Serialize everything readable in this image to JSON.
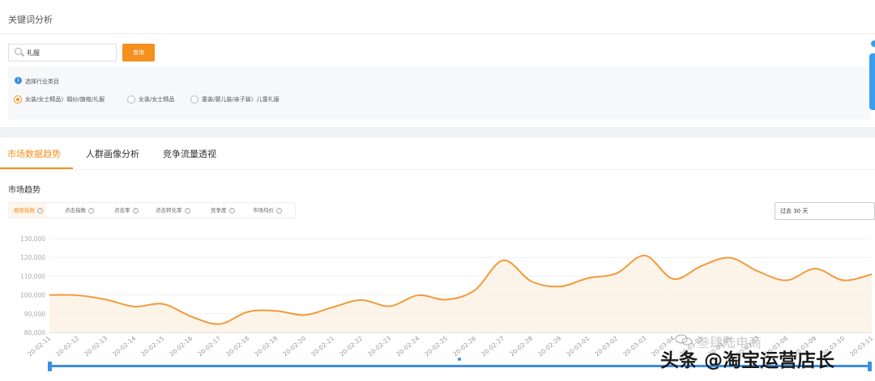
{
  "page": {
    "title": "关键词分析"
  },
  "search": {
    "value": "礼服",
    "button_label": "查询"
  },
  "filter": {
    "title": "选择行业类目",
    "options": [
      "女装/女士精品〉婚纱/旗袍/礼服",
      "女装/女士精品",
      "童装/婴儿装/亲子装〉儿童礼服"
    ],
    "selected_index": 0
  },
  "tabs": [
    "市场数据趋势",
    "人群画像分析",
    "竞争流量透视"
  ],
  "section_title": "市场趋势",
  "metrics": [
    "展现指数",
    "点击指数",
    "点击率",
    "点击转化率",
    "竞争度",
    "市场均价"
  ],
  "range": "过去 30 天",
  "watermark": {
    "brand": "叁肆陆电商",
    "caption": "头条 @淘宝运营店长"
  },
  "colors": {
    "accent": "#f58f1e",
    "info": "#3a8ee6"
  },
  "chart_data": {
    "type": "area",
    "title": "",
    "xlabel": "",
    "ylabel": "",
    "ylim": [
      80000,
      130000
    ],
    "yticks": [
      "80,000",
      "90,000",
      "100,000",
      "110,000",
      "120,000",
      "130,000"
    ],
    "x": [
      "20-02-11",
      "20-02-12",
      "20-02-13",
      "20-02-14",
      "20-02-15",
      "20-02-16",
      "20-02-17",
      "20-02-18",
      "20-02-19",
      "20-02-20",
      "20-02-21",
      "20-02-22",
      "20-02-23",
      "20-02-24",
      "20-02-25",
      "20-02-26",
      "20-02-27",
      "20-02-28",
      "20-02-29",
      "20-03-01",
      "20-03-02",
      "20-03-03",
      "20-03-04",
      "20-03-05",
      "20-03-06",
      "20-03-07",
      "20-03-08",
      "20-03-09",
      "20-03-10",
      "20-03-11"
    ],
    "values": [
      100000,
      99800,
      97500,
      93800,
      95200,
      88500,
      84500,
      91000,
      91500,
      89300,
      93500,
      97300,
      94000,
      99800,
      97500,
      102500,
      118400,
      107200,
      104500,
      109000,
      111500,
      121000,
      108500,
      115500,
      119800,
      112500,
      107800,
      114000,
      107800,
      111000
    ]
  }
}
